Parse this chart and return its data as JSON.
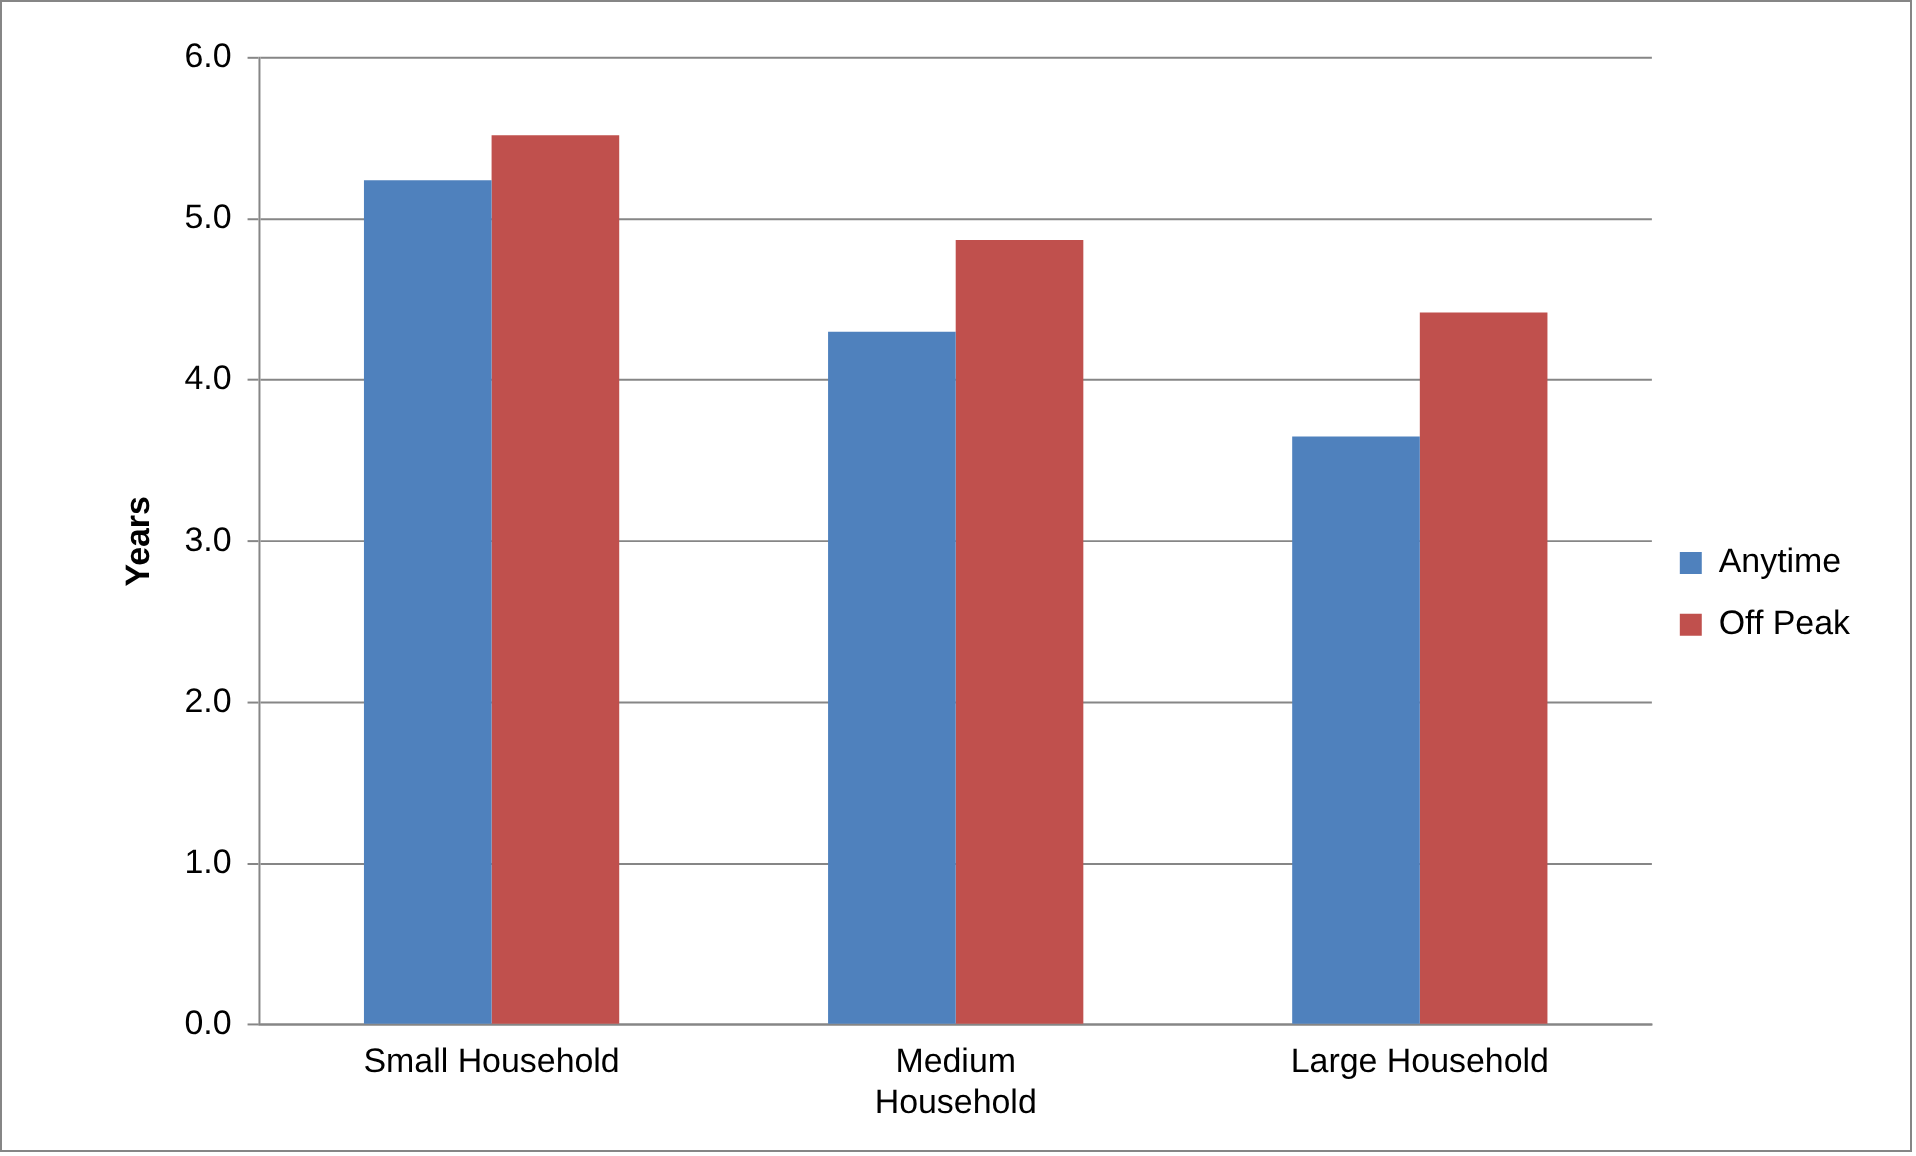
{
  "chart_data": {
    "type": "bar",
    "ylabel": "Years",
    "categories": [
      "Small Household",
      "Medium Household",
      "Large Household"
    ],
    "series": [
      {
        "name": "Anytime",
        "color": "#4f81bd",
        "values": [
          5.24,
          4.3,
          3.65
        ]
      },
      {
        "name": "Off Peak",
        "color": "#c0504d",
        "values": [
          5.52,
          4.87,
          4.42
        ]
      }
    ],
    "ylim": [
      0,
      6
    ],
    "yticks": [
      {
        "value": 0,
        "label": "0.0"
      },
      {
        "value": 1,
        "label": "1.0"
      },
      {
        "value": 2,
        "label": "2.0"
      },
      {
        "value": 3,
        "label": "3.0"
      },
      {
        "value": 4,
        "label": "4.0"
      },
      {
        "value": 5,
        "label": "5.0"
      },
      {
        "value": 6,
        "label": "6.0"
      }
    ],
    "grid": "y",
    "legend": "right"
  }
}
